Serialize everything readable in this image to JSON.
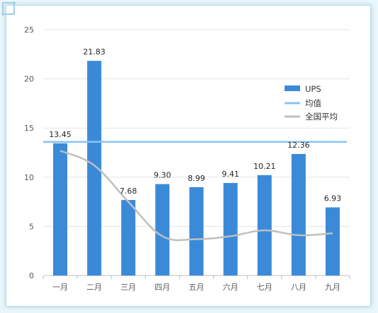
{
  "chart_data": {
    "type": "bar",
    "categories": [
      "一月",
      "二月",
      "三月",
      "四月",
      "五月",
      "六月",
      "七月",
      "八月",
      "九月"
    ],
    "series": [
      {
        "name": "UPS",
        "type": "bar",
        "color": "#3a8ad8",
        "values": [
          13.45,
          21.83,
          7.68,
          9.3,
          8.99,
          9.41,
          10.21,
          12.36,
          6.93
        ],
        "labels": [
          "13.45",
          "21.83",
          "7.68",
          "9.30",
          "8.99",
          "9.41",
          "10.21",
          "12.36",
          "6.93"
        ]
      },
      {
        "name": "均值",
        "type": "line",
        "color": "#88c4f2",
        "values": [
          13.6,
          13.6,
          13.6,
          13.6,
          13.6,
          13.6,
          13.6,
          13.6,
          13.6
        ]
      },
      {
        "name": "全国平均",
        "type": "line",
        "color": "#bfbfbf",
        "values": [
          12.7,
          11.2,
          7.5,
          4.0,
          3.7,
          4.0,
          4.6,
          4.1,
          4.3
        ]
      }
    ],
    "yticks": [
      "0",
      "5",
      "10",
      "15",
      "20",
      "25"
    ],
    "ylim": [
      0,
      25
    ],
    "grid": true,
    "legend_position": "right"
  }
}
